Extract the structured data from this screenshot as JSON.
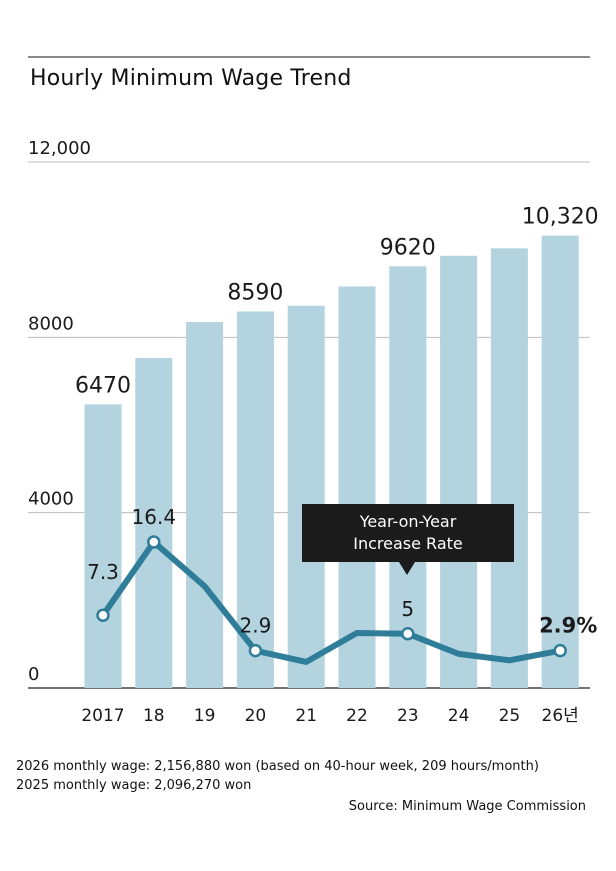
{
  "title": "Hourly Minimum Wage Trend",
  "chart_data": {
    "type": "bar",
    "title": "Hourly Minimum Wage Trend",
    "categories": [
      "2017",
      "18",
      "19",
      "20",
      "21",
      "22",
      "23",
      "24",
      "25",
      "26년"
    ],
    "values": [
      6470,
      7530,
      8350,
      8590,
      8720,
      9160,
      9620,
      9860,
      10030,
      10320
    ],
    "value_labels": [
      "6470",
      "",
      "",
      "8590",
      "",
      "",
      "9620",
      "",
      "",
      "10,320"
    ],
    "ylim": [
      0,
      12000
    ],
    "yticks": [
      0,
      4000,
      8000,
      12000
    ],
    "ytick_labels": [
      "0",
      "4000",
      "8000",
      "12,000"
    ],
    "bar_color": "#b3d3df",
    "line_series": {
      "name": "Year-on-Year Increase Rate",
      "values": [
        7.3,
        16.4,
        10.9,
        2.9,
        1.5,
        5.1,
        5.0,
        2.5,
        1.7,
        2.9
      ],
      "labels": [
        "7.3",
        "16.4",
        "",
        "2.9",
        "",
        "",
        "5",
        "",
        "",
        "2.9%"
      ],
      "markers": [
        true,
        true,
        false,
        true,
        false,
        false,
        true,
        false,
        false,
        true
      ],
      "color": "#2f7d98"
    }
  },
  "callout": {
    "line1": "Year-on-Year",
    "line2": "Increase Rate"
  },
  "notes": {
    "line1": "2026 monthly wage: 2,156,880 won (based on 40-hour week, 209 hours/month)",
    "line2": "2025 monthly wage: 2,096,270 won"
  },
  "source": "Source: Minimum Wage Commission"
}
